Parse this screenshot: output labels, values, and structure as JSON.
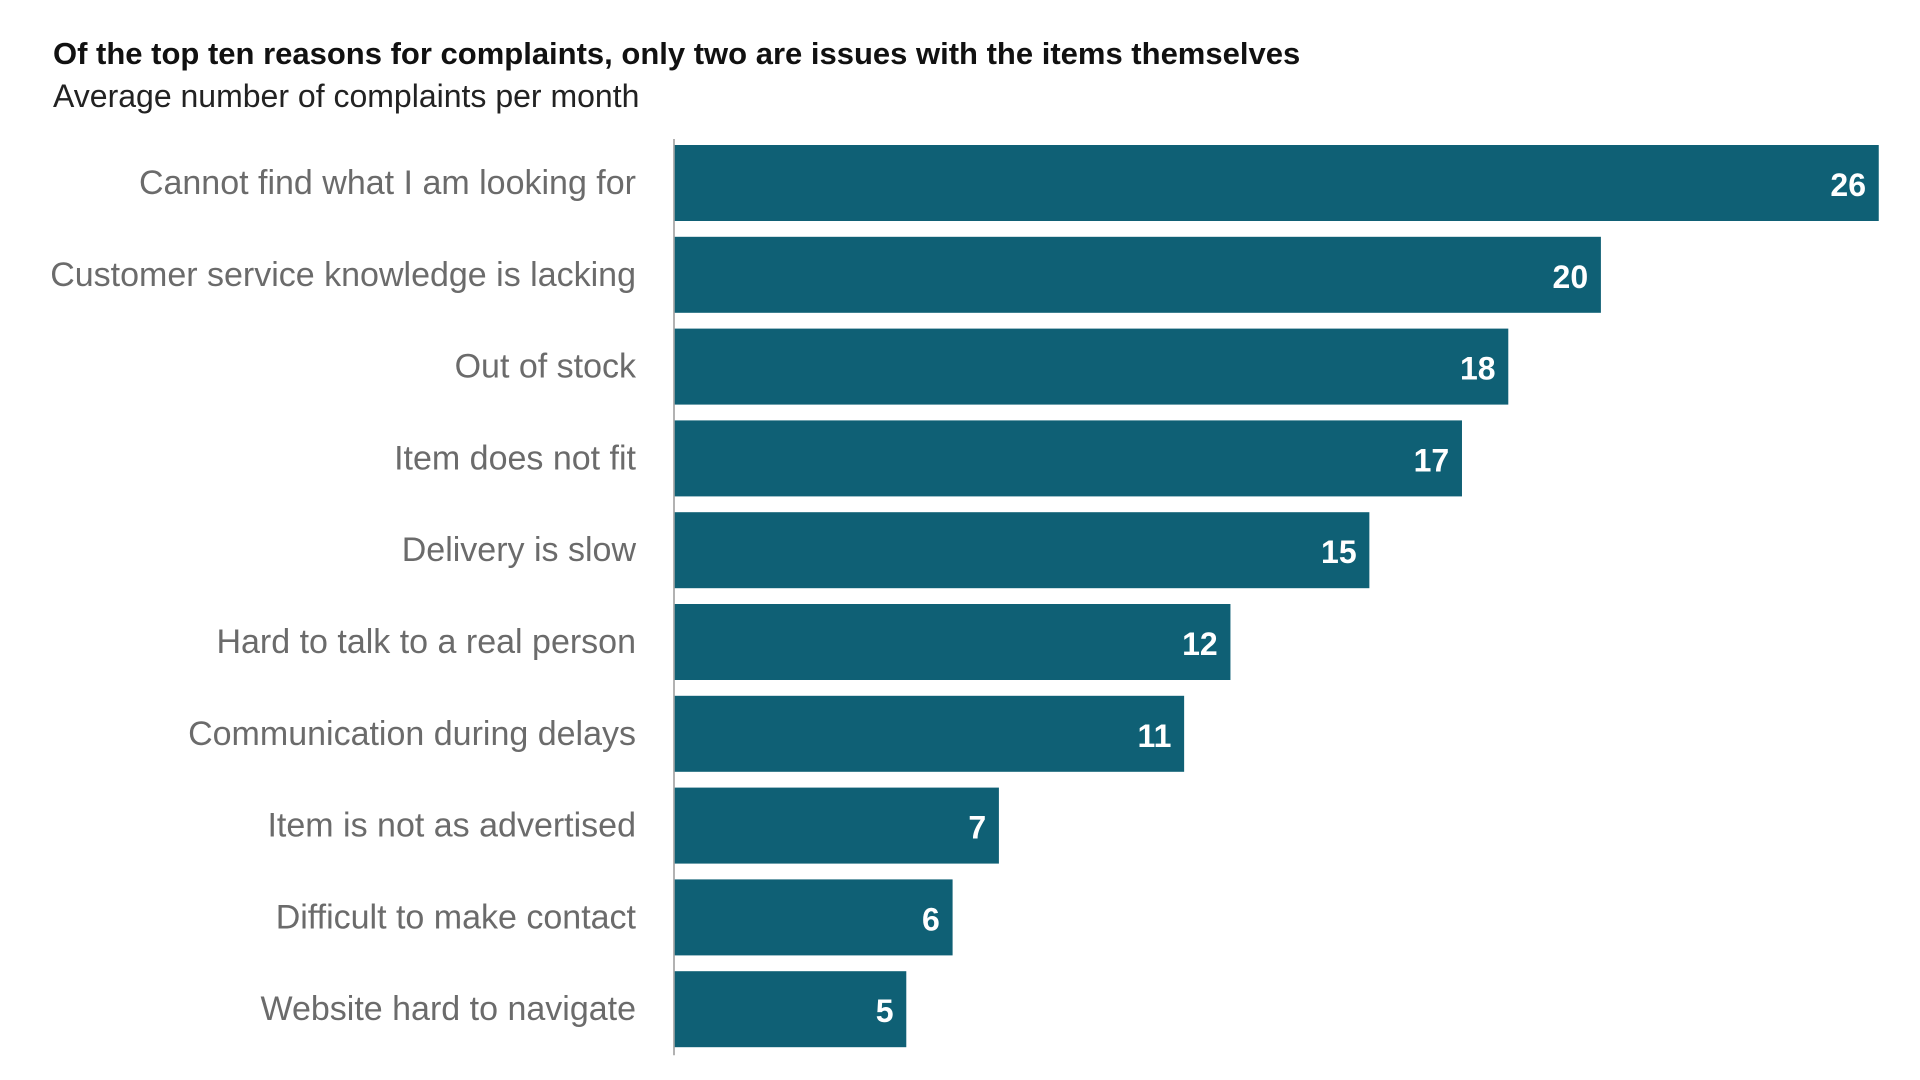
{
  "chart_data": {
    "type": "bar",
    "orientation": "horizontal",
    "title": "Of the top ten reasons for complaints, only two are issues with the items themselves",
    "subtitle": "Average number of complaints per month",
    "categories": [
      "Cannot find what I am looking for",
      "Customer service knowledge is lacking",
      "Out of stock",
      "Item does not fit",
      "Delivery is slow",
      "Hard to talk to a real person",
      "Communication during delays",
      "Item is not as advertised",
      "Difficult to make contact",
      "Website hard to navigate"
    ],
    "values": [
      26,
      20,
      18,
      17,
      15,
      12,
      11,
      7,
      6,
      5
    ],
    "xlim": [
      0,
      26
    ],
    "data_labels": true,
    "grid": false,
    "legend": "none",
    "colors": {
      "bar": "#0f6075",
      "axis": "#999999",
      "category_label": "#6b6b6b",
      "value_label": "#ffffff"
    }
  }
}
